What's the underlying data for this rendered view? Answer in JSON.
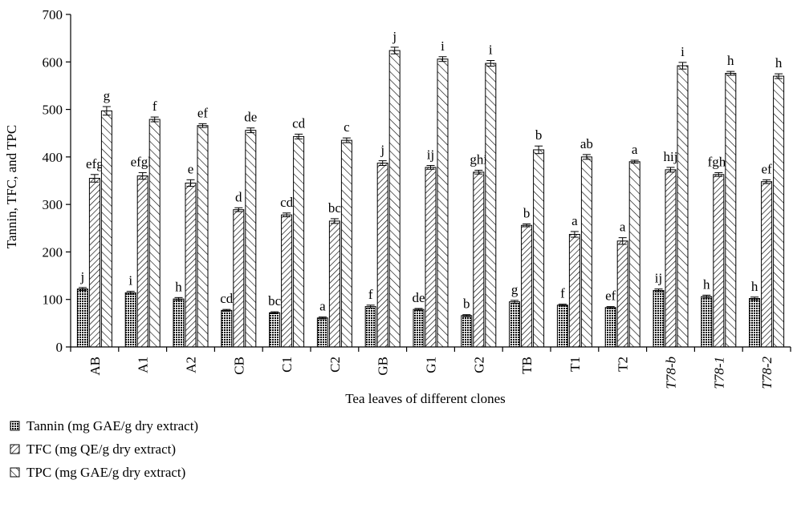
{
  "chart_data": {
    "type": "bar",
    "xlabel": "Tea leaves of different clones",
    "ylabel": "Tannin, TFC, and TPC",
    "ylim": [
      0,
      700
    ],
    "yticks": [
      0,
      100,
      200,
      300,
      400,
      500,
      600,
      700
    ],
    "grid": false,
    "legend_position": "bottom-left",
    "categories": [
      "AB",
      "A1",
      "A2",
      "CB",
      "C1",
      "C2",
      "GB",
      "G1",
      "G2",
      "TB",
      "T1",
      "T2",
      "T78-b",
      "T78-1",
      "T78-2"
    ],
    "category_display": [
      {
        "main": "AB"
      },
      {
        "main": "A1"
      },
      {
        "main": "A2"
      },
      {
        "main": "CB"
      },
      {
        "main": "C1"
      },
      {
        "main": "C2"
      },
      {
        "main": "GB"
      },
      {
        "main": "G1"
      },
      {
        "main": "G2"
      },
      {
        "main": "TB"
      },
      {
        "main": "T1"
      },
      {
        "main": "T2"
      },
      {
        "main": "T78-",
        "italic": "b"
      },
      {
        "main": "T78-1"
      },
      {
        "main": "T78-2"
      }
    ],
    "series": [
      {
        "name": "Tannin (mg GAE/g dry extract)",
        "pattern": "dots",
        "values": [
          122,
          114,
          101,
          77,
          72,
          61,
          85,
          79,
          66,
          95,
          88,
          83,
          119,
          106,
          102
        ],
        "errors": [
          3,
          3,
          3,
          2,
          2,
          2,
          3,
          2,
          2,
          3,
          2,
          2,
          3,
          3,
          3
        ],
        "labels": [
          "j",
          "i",
          "h",
          "cd",
          "bc",
          "a",
          "f",
          "de",
          "b",
          "g",
          "f",
          "ef",
          "ij",
          "h",
          "h"
        ]
      },
      {
        "name": "TFC (mg QE/g dry extract)",
        "pattern": "back-diagonal",
        "values": [
          355,
          360,
          345,
          289,
          278,
          265,
          387,
          378,
          368,
          256,
          237,
          223,
          373,
          363,
          348
        ],
        "errors": [
          8,
          7,
          7,
          4,
          4,
          5,
          5,
          4,
          4,
          3,
          6,
          7,
          5,
          4,
          4
        ],
        "labels": [
          "efg",
          "efgh",
          "e",
          "d",
          "cd",
          "bc",
          "j",
          "ij",
          "ghi",
          "b",
          "a",
          "a",
          "hij",
          "fghi",
          "ef"
        ]
      },
      {
        "name": "TPC (mg GAE/g dry extract)",
        "pattern": "forward-diagonal",
        "values": [
          497,
          479,
          466,
          456,
          443,
          435,
          624,
          606,
          597,
          415,
          400,
          390,
          592,
          576,
          570
        ],
        "errors": [
          9,
          5,
          4,
          5,
          5,
          5,
          7,
          5,
          6,
          8,
          5,
          3,
          7,
          4,
          5
        ],
        "labels": [
          "g",
          "f",
          "ef",
          "de",
          "cd",
          "c",
          "j",
          "i",
          "i",
          "b",
          "ab",
          "a",
          "i",
          "h",
          "h"
        ]
      }
    ]
  }
}
